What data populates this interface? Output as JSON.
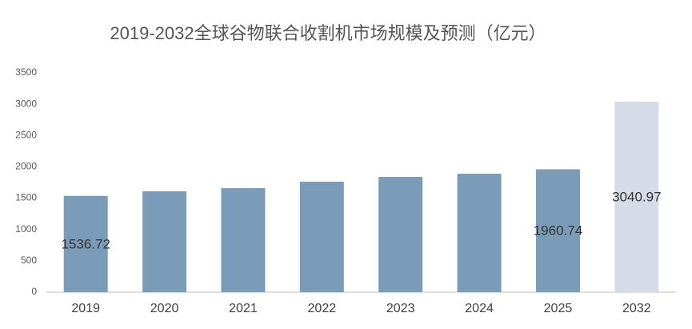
{
  "chart_data": {
    "type": "bar",
    "title": "2019-2032全球谷物联合收割机市场规模及预测（亿元）",
    "categories": [
      "2019",
      "2020",
      "2021",
      "2022",
      "2023",
      "2024",
      "2025",
      "2032"
    ],
    "values": [
      1536.72,
      1610,
      1660,
      1763,
      1839,
      1890,
      1960.74,
      3040.97
    ],
    "value_labels": [
      "1536.72",
      null,
      null,
      null,
      null,
      null,
      "1960.74",
      "3040.97"
    ],
    "colors": [
      "#7a9cb9",
      "#7a9cb9",
      "#7a9cb9",
      "#7a9cb9",
      "#7a9cb9",
      "#7a9cb9",
      "#7a9cb9",
      "#d6dce7"
    ],
    "ylim": [
      0,
      3500
    ],
    "yticks": [
      0,
      500,
      1000,
      1500,
      2000,
      2500,
      3000,
      3500
    ],
    "grid": false
  }
}
